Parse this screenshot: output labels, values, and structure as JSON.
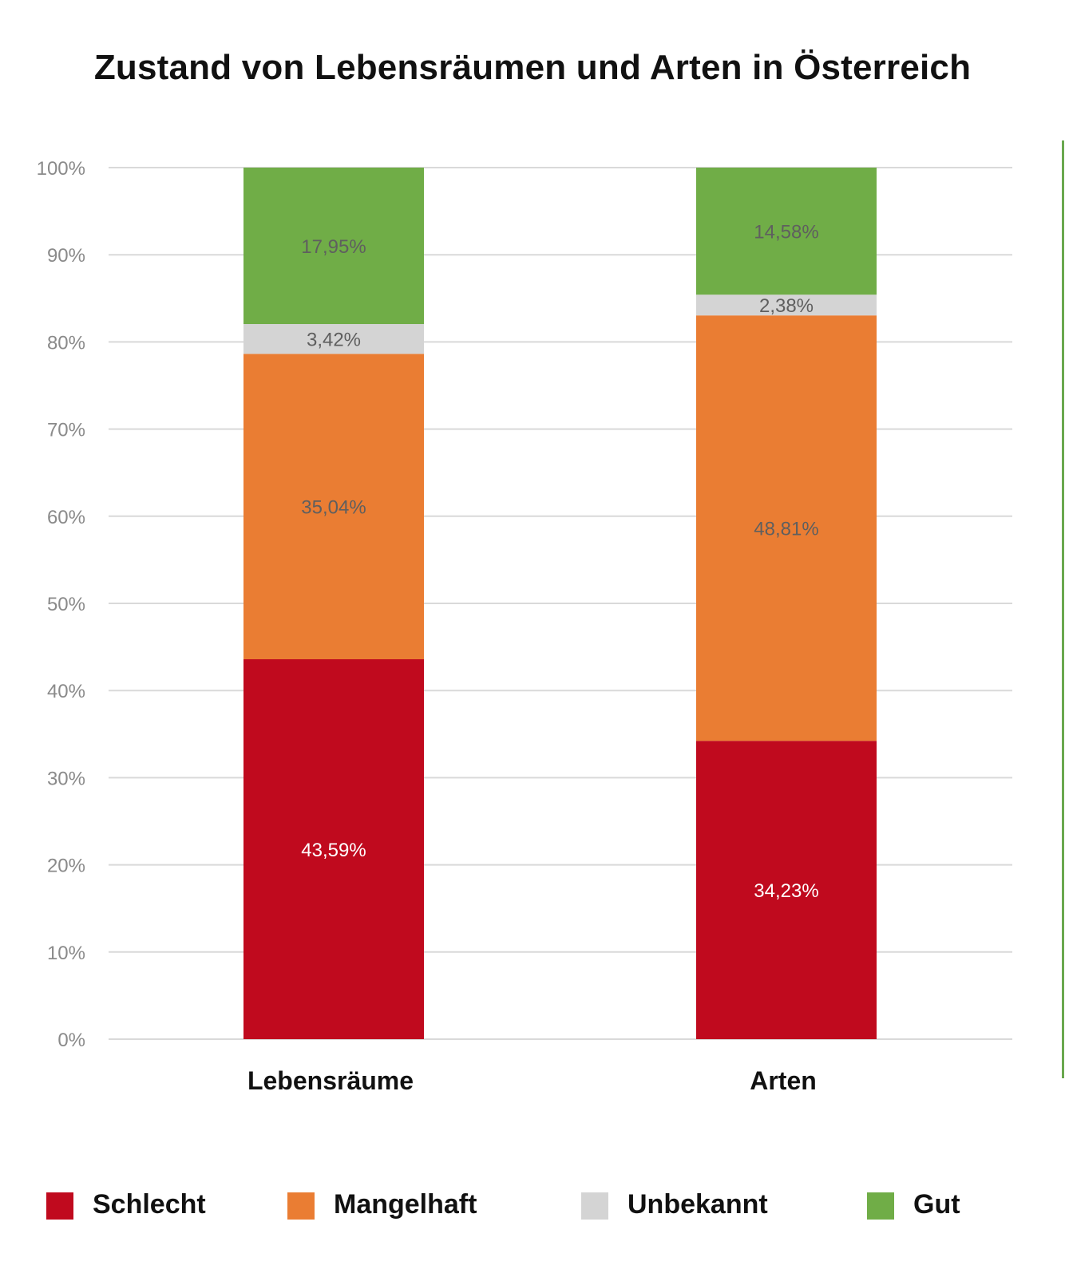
{
  "chart_data": {
    "type": "bar",
    "stacked": true,
    "title": "Zustand von Lebensräumen und Arten in Österreich",
    "xlabel": "",
    "ylabel": "",
    "ylim": [
      0,
      100
    ],
    "y_ticks": [
      "0%",
      "10%",
      "20%",
      "30%",
      "40%",
      "50%",
      "60%",
      "70%",
      "80%",
      "90%",
      "100%"
    ],
    "grid": true,
    "legend_position": "bottom",
    "categories": [
      "Lebensräume",
      "Arten"
    ],
    "series": [
      {
        "name": "Schlecht",
        "color": "#c00a1e",
        "label_color": "#ffffff",
        "values": [
          43.59,
          34.23
        ],
        "labels": [
          "43,59%",
          "34,23%"
        ]
      },
      {
        "name": "Mangelhaft",
        "color": "#ea7d33",
        "label_color": "#5f5f5f",
        "values": [
          35.04,
          48.81
        ],
        "labels": [
          "35,04%",
          "48,81%"
        ]
      },
      {
        "name": "Unbekannt",
        "color": "#d4d4d4",
        "label_color": "#5f5f5f",
        "values": [
          3.42,
          2.38
        ],
        "labels": [
          "3,42%",
          "2,38%"
        ]
      },
      {
        "name": "Gut",
        "color": "#70ad47",
        "label_color": "#5f5f5f",
        "values": [
          17.95,
          14.58
        ],
        "labels": [
          "17,95%",
          "14,58%"
        ]
      }
    ]
  }
}
